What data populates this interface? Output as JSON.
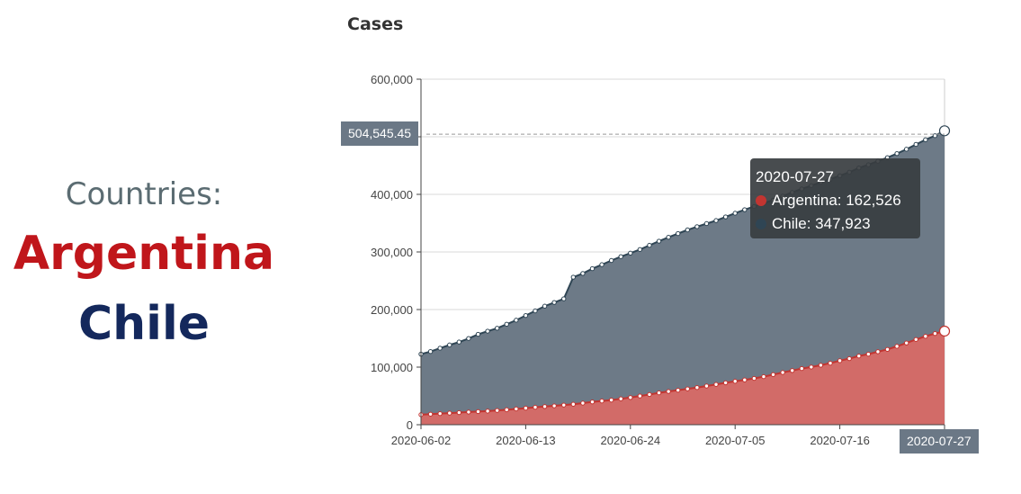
{
  "side_panel": {
    "heading": "Countries:",
    "country_1": "Argentina",
    "country_2": "Chile",
    "colors": {
      "heading": "#5b6c72",
      "country_1": "#c0161b",
      "country_2": "#14285c"
    }
  },
  "chart_data": {
    "type": "area",
    "stacked": true,
    "title": "Cases",
    "xlabel": "",
    "ylabel": "",
    "ylim": [
      0,
      600000
    ],
    "y_ticks": [
      "0",
      "100,000",
      "200,000",
      "300,000",
      "400,000",
      "600,000"
    ],
    "x_ticks": [
      "2020-06-02",
      "2020-06-13",
      "2020-06-24",
      "2020-07-05",
      "2020-07-16",
      "2020-07-27"
    ],
    "grid": true,
    "x": [
      "2020-06-02",
      "2020-06-03",
      "2020-06-04",
      "2020-06-05",
      "2020-06-06",
      "2020-06-07",
      "2020-06-08",
      "2020-06-09",
      "2020-06-10",
      "2020-06-11",
      "2020-06-12",
      "2020-06-13",
      "2020-06-14",
      "2020-06-15",
      "2020-06-16",
      "2020-06-17",
      "2020-06-18",
      "2020-06-19",
      "2020-06-20",
      "2020-06-21",
      "2020-06-22",
      "2020-06-23",
      "2020-06-24",
      "2020-06-25",
      "2020-06-26",
      "2020-06-27",
      "2020-06-28",
      "2020-06-29",
      "2020-06-30",
      "2020-07-01",
      "2020-07-02",
      "2020-07-03",
      "2020-07-04",
      "2020-07-05",
      "2020-07-06",
      "2020-07-07",
      "2020-07-08",
      "2020-07-09",
      "2020-07-10",
      "2020-07-11",
      "2020-07-12",
      "2020-07-13",
      "2020-07-14",
      "2020-07-15",
      "2020-07-16",
      "2020-07-17",
      "2020-07-18",
      "2020-07-19",
      "2020-07-20",
      "2020-07-21",
      "2020-07-22",
      "2020-07-23",
      "2020-07-24",
      "2020-07-25",
      "2020-07-26",
      "2020-07-27"
    ],
    "series": [
      {
        "name": "Argentina",
        "color": "#c23531",
        "values": [
          17415,
          18319,
          19268,
          20197,
          21037,
          22020,
          22794,
          23620,
          24761,
          25987,
          27373,
          28764,
          30295,
          31577,
          32785,
          34159,
          35552,
          37510,
          39570,
          41204,
          42785,
          44931,
          47216,
          49851,
          52457,
          55343,
          57744,
          59933,
          62268,
          64530,
          67197,
          69941,
          72786,
          75376,
          77815,
          80447,
          83426,
          87030,
          90693,
          94060,
          97509,
          100166,
          103265,
          106910,
          111160,
          114783,
          119301,
          122524,
          126755,
          130774,
          136118,
          141900,
          148027,
          153520,
          158334,
          162526
        ]
      },
      {
        "name": "Chile",
        "color": "#2f4554",
        "values": [
          105159,
          108686,
          113628,
          118292,
          122499,
          127745,
          134150,
          138846,
          142759,
          148496,
          154092,
          160846,
          167355,
          174293,
          179436,
          184449,
          220628,
          225103,
          231393,
          236748,
          242355,
          246963,
          250767,
          254416,
          259064,
          263360,
          267766,
          271982,
          275999,
          279393,
          282043,
          284541,
          288089,
          291847,
          295532,
          298557,
          301019,
          303083,
          306216,
          309274,
          312029,
          315041,
          317657,
          319493,
          321205,
          323698,
          326539,
          328846,
          330930,
          333029,
          334683,
          336402,
          338759,
          341304,
          343592,
          347923
        ]
      }
    ],
    "axis_pointer": {
      "y_value": "504,545.45",
      "x_value": "2020-07-27"
    },
    "tooltip": {
      "date": "2020-07-27",
      "rows": [
        "Argentina: 162,526",
        "Chile: 347,923"
      ]
    }
  }
}
